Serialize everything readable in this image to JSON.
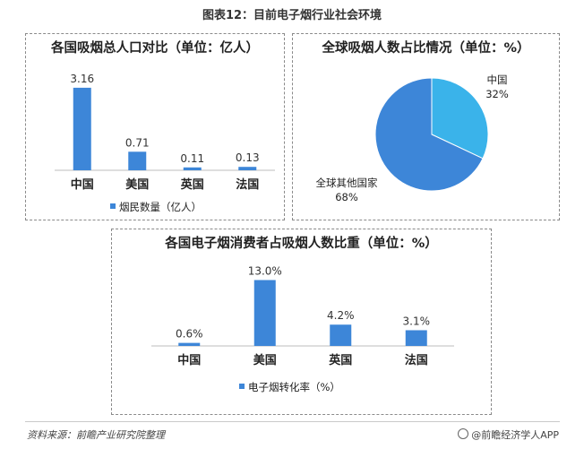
{
  "figure_title": "图表12：目前电子烟行业社会环境",
  "source_text": "资料来源：前瞻产业研究院整理",
  "brand_text": "@前瞻经济学人APP",
  "colors": {
    "bar": "#3d86d8",
    "bar_light": "#3ab3ea",
    "pie_main": "#3d86d8",
    "pie_minor": "#3ab3ea"
  },
  "chart_data": [
    {
      "id": "pop",
      "type": "bar",
      "title": "各国吸烟总人口对比（单位：亿人）",
      "categories": [
        "中国",
        "美国",
        "英国",
        "法国"
      ],
      "series": [
        {
          "name": "烟民数量（亿人）",
          "values": [
            3.16,
            0.71,
            0.11,
            0.13
          ]
        }
      ],
      "value_labels": [
        "3.16",
        "0.71",
        "0.11",
        "0.13"
      ],
      "ylim": [
        0,
        3.5
      ],
      "legend": "bottom"
    },
    {
      "id": "share",
      "type": "pie",
      "title": "全球吸烟人数占比情况（单位：%）",
      "slices": [
        {
          "label": "中国",
          "value": 32,
          "value_label": "32%"
        },
        {
          "label": "全球其他国家",
          "value": 68,
          "value_label": "68%"
        }
      ]
    },
    {
      "id": "ecig",
      "type": "bar",
      "title": "各国电子烟消费者占吸烟人数比重（单位：%）",
      "categories": [
        "中国",
        "美国",
        "英国",
        "法国"
      ],
      "series": [
        {
          "name": "电子烟转化率（%）",
          "values": [
            0.6,
            13.0,
            4.2,
            3.1
          ]
        }
      ],
      "value_labels": [
        "0.6%",
        "13.0%",
        "4.2%",
        "3.1%"
      ],
      "ylim": [
        0,
        14.5
      ],
      "legend": "bottom"
    }
  ]
}
